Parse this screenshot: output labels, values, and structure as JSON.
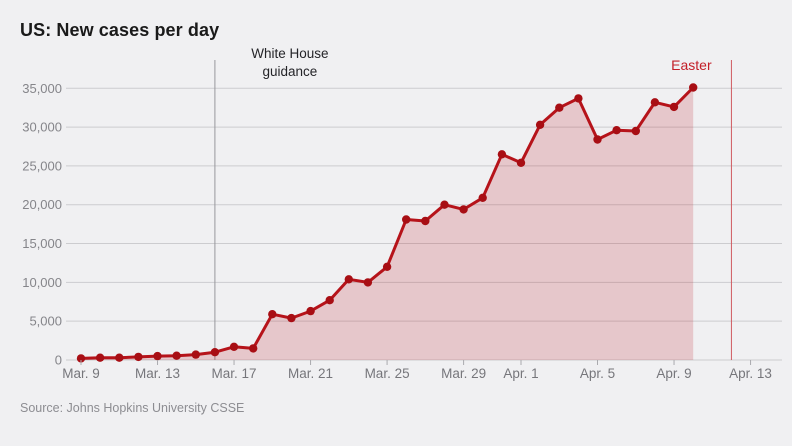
{
  "card": {
    "title": "US: New cases per day",
    "source": "Source: Johns Hopkins University CSSE"
  },
  "colors": {
    "background": "#f0f0f2",
    "line_red": "#b6131a",
    "dot_red": "#a80e14",
    "area_fill": "rgba(186,18,25,0.18)",
    "gridline": "#cccccf",
    "axis_label": "#85858a",
    "guidance_line": "#97979c",
    "easter_line": "#d05a60",
    "easter_text": "#c31f28",
    "title_text": "#1a1a1a"
  },
  "chart_data": {
    "type": "area",
    "title": "US: New cases per day",
    "xlabel": "",
    "ylabel": "",
    "grid": true,
    "ylim": [
      0,
      35000
    ],
    "y_ticks": [
      0,
      5000,
      10000,
      15000,
      20000,
      25000,
      30000,
      35000
    ],
    "x": [
      "Mar. 9",
      "Mar. 10",
      "Mar. 11",
      "Mar. 12",
      "Mar. 13",
      "Mar. 14",
      "Mar. 15",
      "Mar. 16",
      "Mar. 17",
      "Mar. 18",
      "Mar. 19",
      "Mar. 20",
      "Mar. 21",
      "Mar. 22",
      "Mar. 23",
      "Mar. 24",
      "Mar. 25",
      "Mar. 26",
      "Mar. 27",
      "Mar. 28",
      "Mar. 29",
      "Mar. 30",
      "Mar. 31",
      "Apr. 1",
      "Apr. 2",
      "Apr. 3",
      "Apr. 4",
      "Apr. 5",
      "Apr. 6",
      "Apr. 7",
      "Apr. 8",
      "Apr. 9",
      "Apr. 10"
    ],
    "series": [
      {
        "name": "New cases per day",
        "values": [
          200,
          300,
          300,
          400,
          500,
          550,
          700,
          1000,
          1700,
          1500,
          5900,
          5400,
          6300,
          7700,
          10400,
          10000,
          12000,
          18100,
          17900,
          20000,
          19400,
          20900,
          26500,
          25400,
          30300,
          32500,
          33700,
          28400,
          29600,
          29500,
          33200,
          32600,
          35100
        ]
      }
    ],
    "x_ticks": [
      {
        "label": "Mar. 9",
        "index": 0
      },
      {
        "label": "Mar. 13",
        "index": 4
      },
      {
        "label": "Mar. 17",
        "index": 8
      },
      {
        "label": "Mar. 21",
        "index": 12
      },
      {
        "label": "Mar. 25",
        "index": 16
      },
      {
        "label": "Mar. 29",
        "index": 20
      },
      {
        "label": "Apr. 1",
        "index": 23
      },
      {
        "label": "Apr. 5",
        "index": 27
      },
      {
        "label": "Apr. 9",
        "index": 31
      },
      {
        "label": "Apr. 13",
        "index": 35
      }
    ],
    "annotations": [
      {
        "id": "white-house-guidance",
        "label_lines": [
          "White House",
          "guidance"
        ],
        "index": 7,
        "style": "dark"
      },
      {
        "id": "easter",
        "label_lines": [
          "Easter"
        ],
        "index": 34,
        "style": "red"
      }
    ],
    "legend_position": "none"
  }
}
